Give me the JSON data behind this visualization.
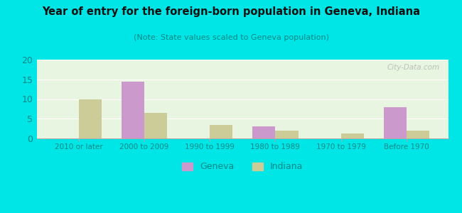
{
  "title": "Year of entry for the foreign-born population in Geneva, Indiana",
  "subtitle": "(Note: State values scaled to Geneva population)",
  "categories": [
    "2010 or later",
    "2000 to 2009",
    "1990 to 1999",
    "1980 to 1989",
    "1970 to 1979",
    "Before 1970"
  ],
  "geneva_values": [
    0,
    14.5,
    0,
    3.0,
    0,
    8.0
  ],
  "indiana_values": [
    10.0,
    6.5,
    3.5,
    2.0,
    1.2,
    2.0
  ],
  "geneva_color": "#cc99cc",
  "indiana_color": "#cccc99",
  "background_outer": "#00e5e5",
  "background_inner": "#e8f5e0",
  "title_color": "#111111",
  "subtitle_color": "#008888",
  "tick_label_color": "#008888",
  "ylim": [
    0,
    20
  ],
  "yticks": [
    0,
    5,
    10,
    15,
    20
  ],
  "bar_width": 0.35,
  "watermark": "City-Data.com"
}
